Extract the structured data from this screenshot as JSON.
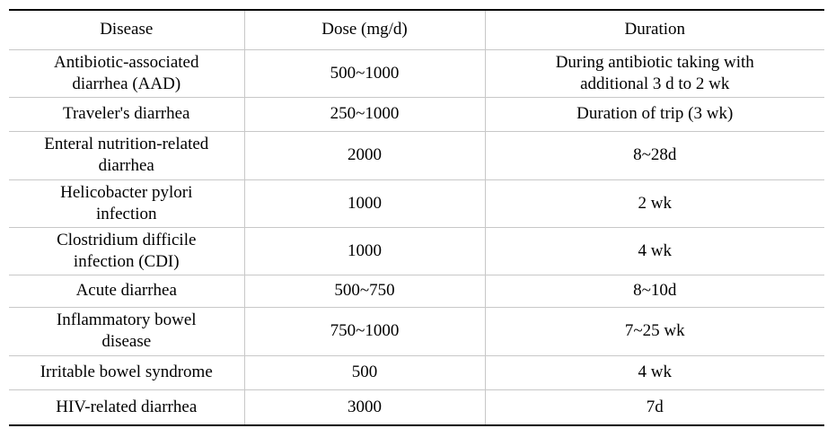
{
  "table": {
    "header": [
      "Disease",
      "Dose (mg/d)",
      "Duration"
    ],
    "rows": [
      [
        "Antibiotic-associated\ndiarrhea (AAD)",
        "500~1000",
        "During antibiotic taking with\nadditional 3 d to 2 wk"
      ],
      [
        "Traveler's diarrhea",
        "250~1000",
        "Duration of trip (3 wk)"
      ],
      [
        "Enteral nutrition-related\ndiarrhea",
        "2000",
        "8~28d"
      ],
      [
        "Helicobacter pylori\ninfection",
        "1000",
        "2 wk"
      ],
      [
        "Clostridium difficile\ninfection (CDI)",
        "1000",
        "4 wk"
      ],
      [
        "Acute diarrhea",
        "500~750",
        "8~10d"
      ],
      [
        "Inflammatory bowel\ndisease",
        "750~1000",
        "7~25 wk"
      ],
      [
        "Irritable bowel syndrome",
        "500",
        "4 wk"
      ],
      [
        "HIV-related diarrhea",
        "3000",
        "7d"
      ]
    ]
  }
}
